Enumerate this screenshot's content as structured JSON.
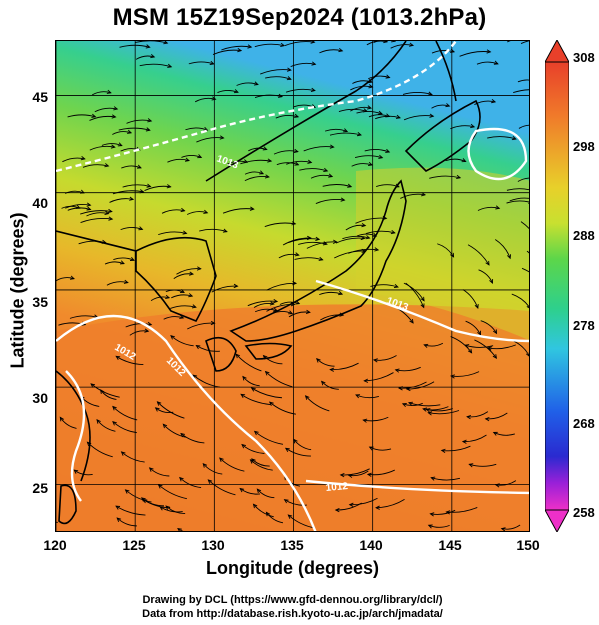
{
  "title": "MSM 15Z19Sep2024 (1013.2hPa)",
  "xaxis": {
    "label": "Longitude (degrees)",
    "ticks": [
      "120",
      "125",
      "130",
      "135",
      "140",
      "145",
      "150"
    ],
    "range": [
      120,
      150
    ]
  },
  "yaxis": {
    "label": "Latitude  (degrees)",
    "ticks": [
      "25",
      "30",
      "35",
      "40",
      "45"
    ],
    "range": [
      22.5,
      47.8
    ]
  },
  "colorbar": {
    "ticks": [
      "308",
      "298",
      "288",
      "278",
      "268",
      "258"
    ],
    "range": [
      258,
      308
    ]
  },
  "contour_labels": [
    "1012",
    "1012",
    "1012",
    "1013",
    "1013"
  ],
  "credits": {
    "line1": "Drawing by DCL (https://www.gfd-dennou.org/library/dcl/)",
    "line2": "Data from http://database.rish.kyoto-u.ac.jp/arch/jmadata/"
  },
  "colors": {
    "warm": "#ee7a2a",
    "mid": "#c8dc2a",
    "cool": "#3fd27a",
    "cold": "#45b8e6",
    "contour": "#ffffff"
  }
}
